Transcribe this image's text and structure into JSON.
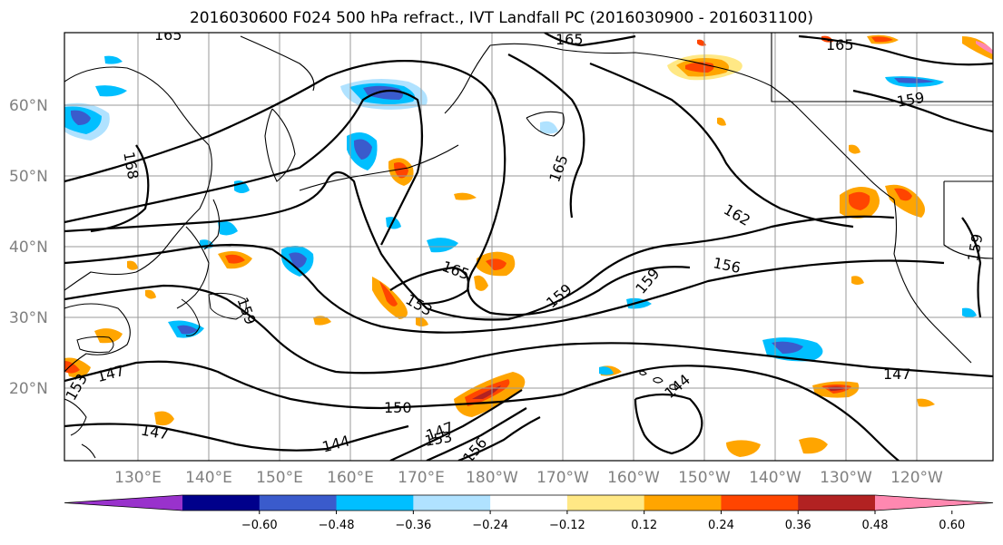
{
  "title": "2016030600 F024 500 hPa refract., IVT Landfall PC (2016030900 - 2016031100)",
  "lat_labels": [
    "60°N",
    "50°N",
    "40°N",
    "30°N",
    "20°N"
  ],
  "lon_labels": [
    "130°E",
    "140°E",
    "150°E",
    "160°E",
    "170°E",
    "180°W",
    "170°W",
    "160°W",
    "150°W",
    "140°W",
    "130°W",
    "120°W"
  ],
  "contour_labels": [
    "168",
    "165",
    "165",
    "165",
    "159",
    "162",
    "165",
    "159",
    "159",
    "156",
    "153",
    "159",
    "147",
    "147",
    "144",
    "147",
    "150",
    "144",
    "153",
    "156",
    "147",
    "159",
    "165",
    "153"
  ],
  "colorbar": {
    "ticks": [
      "−0.60",
      "−0.48",
      "−0.36",
      "−0.24",
      "−0.12",
      "0.12",
      "0.24",
      "0.36",
      "0.48",
      "0.60"
    ],
    "colors": [
      "#9932cc",
      "#00008b",
      "#3a5bcc",
      "#00bfff",
      "#b0e2ff",
      "#ffffff",
      "#ffe885",
      "#ffa500",
      "#ff4500",
      "#b22222",
      "#ff88b0"
    ]
  },
  "colors": {
    "contour": "#000000",
    "coast": "#000000",
    "grid": "#9a9a9a",
    "label": "#808080"
  }
}
